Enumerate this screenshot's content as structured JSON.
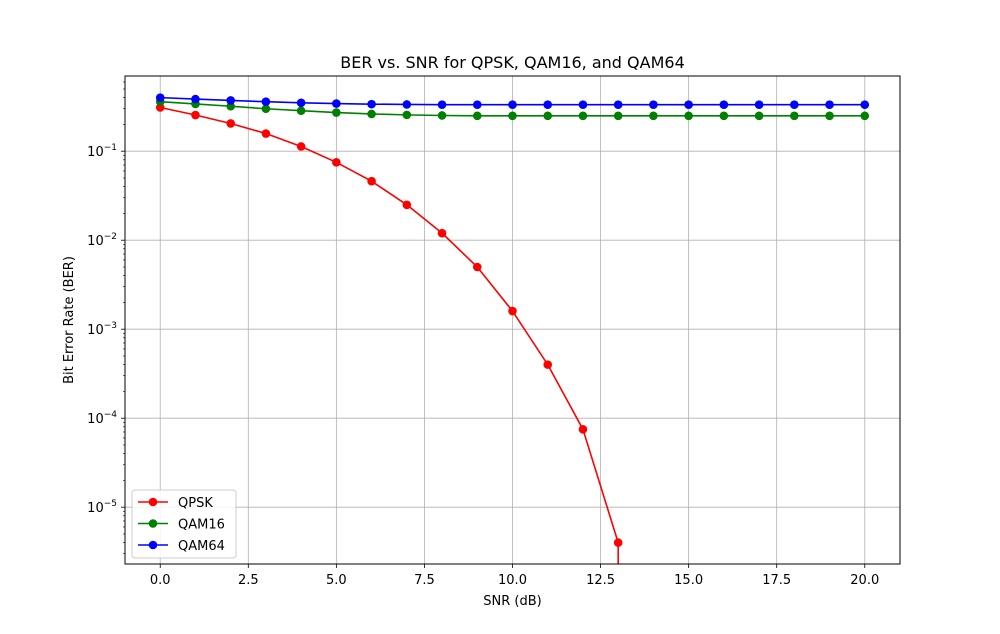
{
  "chart_data": {
    "type": "line",
    "title": "BER vs. SNR for QPSK, QAM16, and QAM64",
    "xlabel": "SNR (dB)",
    "ylabel": "Bit Error Rate (BER)",
    "xlim": [
      -1.0,
      21.0
    ],
    "ylim": [
      2.3e-06,
      0.7
    ],
    "yscale": "log",
    "grid": true,
    "legend_position": "lower-left",
    "x_ticks": [
      0.0,
      2.5,
      5.0,
      7.5,
      10.0,
      12.5,
      15.0,
      17.5,
      20.0
    ],
    "x_tick_labels": [
      "0.0",
      "2.5",
      "5.0",
      "7.5",
      "10.0",
      "12.5",
      "15.0",
      "17.5",
      "20.0"
    ],
    "y_ticks": [
      {
        "value": 0.1,
        "base": "10",
        "exp": "−1"
      },
      {
        "value": 0.01,
        "base": "10",
        "exp": "−2"
      },
      {
        "value": 0.001,
        "base": "10",
        "exp": "−3"
      },
      {
        "value": 0.0001,
        "base": "10",
        "exp": "−4"
      },
      {
        "value": 1e-05,
        "base": "10",
        "exp": "−5"
      }
    ],
    "series": [
      {
        "name": "QPSK",
        "color": "#ff0000",
        "x": [
          0,
          1,
          2,
          3,
          4,
          5,
          6,
          7,
          8,
          9,
          10,
          11,
          12,
          13
        ],
        "values": [
          0.31,
          0.255,
          0.205,
          0.158,
          0.113,
          0.075,
          0.046,
          0.025,
          0.012,
          0.005,
          0.0016,
          0.0004,
          7.5e-05,
          4e-06
        ]
      },
      {
        "name": "QAM16",
        "color": "#008000",
        "x": [
          0,
          1,
          2,
          3,
          4,
          5,
          6,
          7,
          8,
          9,
          10,
          11,
          12,
          13,
          14,
          15,
          16,
          17,
          18,
          19,
          20
        ],
        "values": [
          0.36,
          0.34,
          0.32,
          0.3,
          0.285,
          0.272,
          0.262,
          0.256,
          0.252,
          0.25,
          0.25,
          0.25,
          0.25,
          0.25,
          0.25,
          0.25,
          0.25,
          0.25,
          0.25,
          0.25,
          0.25
        ]
      },
      {
        "name": "QAM64",
        "color": "#0000ff",
        "x": [
          0,
          1,
          2,
          3,
          4,
          5,
          6,
          7,
          8,
          9,
          10,
          11,
          12,
          13,
          14,
          15,
          16,
          17,
          18,
          19,
          20
        ],
        "values": [
          0.4,
          0.385,
          0.372,
          0.36,
          0.35,
          0.343,
          0.338,
          0.335,
          0.333,
          0.333,
          0.333,
          0.333,
          0.333,
          0.333,
          0.333,
          0.333,
          0.333,
          0.333,
          0.333,
          0.333,
          0.333
        ]
      }
    ]
  }
}
